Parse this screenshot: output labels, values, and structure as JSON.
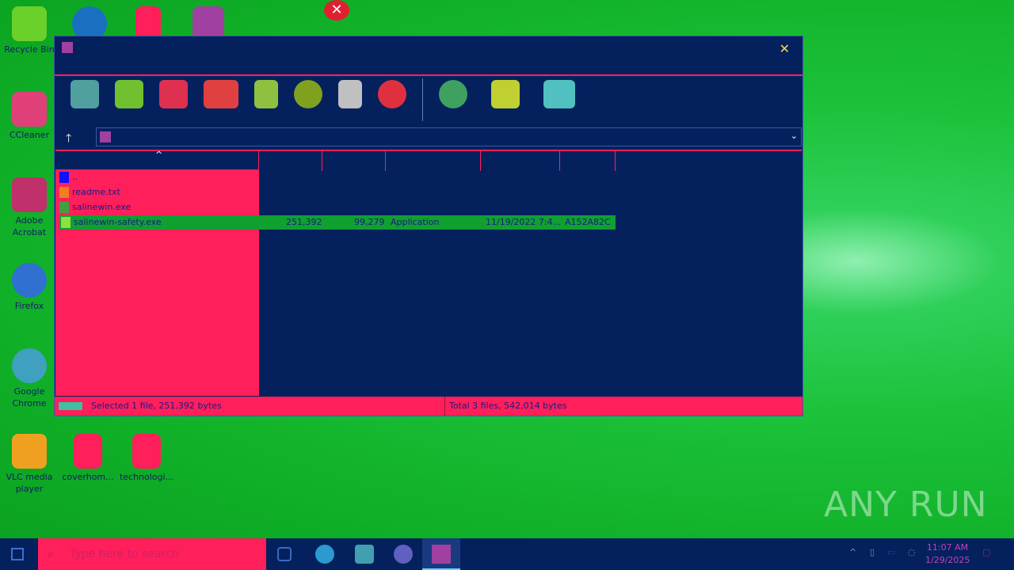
{
  "desktop": {
    "icons": [
      {
        "label": "Recycle Bin",
        "color": "#6ad02a"
      },
      {
        "label": "CCleaner",
        "color": "#e0407a"
      },
      {
        "label": "Adobe Acrobat",
        "color": "#c0306a"
      },
      {
        "label": "Firefox",
        "color": "#3070d0"
      },
      {
        "label": "Google Chrome",
        "color": "#40a0c0"
      },
      {
        "label": "VLC media player",
        "color": "#f0a020"
      },
      {
        "label": "coverhom...",
        "color": "#ff1f5a"
      },
      {
        "label": "technologi...",
        "color": "#ff1f5a"
      }
    ]
  },
  "window": {
    "close_icon": "close-icon",
    "toolbar": [
      "add",
      "extract",
      "test",
      "view",
      "delete",
      "find",
      "wizard",
      "info",
      "virusscan",
      "comment",
      "sfx"
    ],
    "address": "",
    "files": [
      {
        "name": ".."
      },
      {
        "name": "readme.txt"
      },
      {
        "name": "salinewin.exe"
      },
      {
        "name": "salinewin-safety.exe",
        "size": "251,392",
        "packed": "99,279",
        "type": "Application",
        "modified": "11/19/2022 7:4...",
        "crc": "A152A82C",
        "selected": true
      }
    ],
    "status_left": "Selected 1 file, 251,392 bytes",
    "status_right": "Total 3 files, 542,014 bytes"
  },
  "taskbar": {
    "search_placeholder": "Type here to search",
    "time": "11:07 AM",
    "date": "1/29/2025"
  },
  "watermark": "ANY RUN"
}
